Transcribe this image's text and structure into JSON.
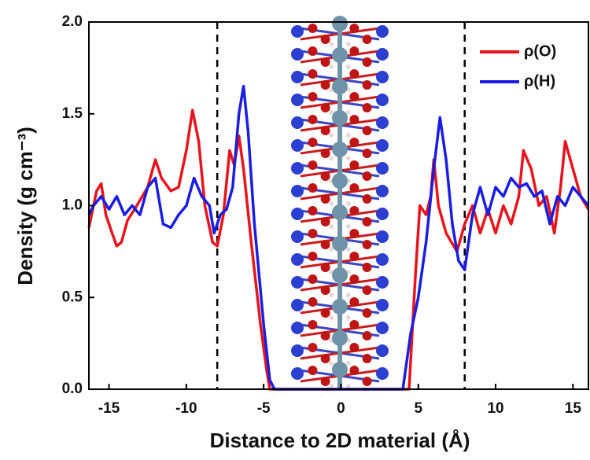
{
  "chart_data": {
    "type": "line",
    "xlabel": "Distance to 2D material (Å)",
    "ylabel": "Density (g cm⁻³)",
    "xlim": [
      -16.3,
      16
    ],
    "ylim": [
      0,
      2
    ],
    "xticks": [
      -15,
      -10,
      -5,
      0,
      5,
      10,
      15
    ],
    "yticks": [
      {
        "value": 0,
        "label": "0.0"
      },
      0.5,
      {
        "value": 1,
        "label": "1.0"
      },
      1.5,
      {
        "value": 2,
        "label": "2.0"
      }
    ],
    "reference_lines": [
      -8,
      8
    ],
    "legend": "top-right",
    "series": [
      {
        "name": "ρ(O)",
        "color": "#e8141b",
        "x": [
          -16.3,
          -15.8,
          -15.5,
          -15.2,
          -14.8,
          -14.5,
          -14.2,
          -13.8,
          -13.2,
          -12.5,
          -12.0,
          -11.6,
          -11.0,
          -10.5,
          -10.0,
          -9.6,
          -9.2,
          -8.8,
          -8.3,
          -8.0,
          -7.6,
          -7.2,
          -6.9,
          -6.6,
          -6.3,
          -5.8,
          -5.2,
          -4.8,
          -4.6,
          -4.0,
          0,
          4.4,
          4.8,
          5.1,
          5.5,
          5.8,
          6.0,
          6.3,
          6.8,
          7.5,
          8.0,
          8.5,
          9.0,
          9.5,
          10.0,
          10.5,
          11.0,
          11.5,
          11.8,
          12.3,
          12.8,
          13.3,
          13.8,
          14.2,
          14.5,
          15.0,
          15.5,
          16.0
        ],
        "values": [
          0.88,
          1.08,
          1.12,
          0.95,
          0.85,
          0.78,
          0.8,
          0.92,
          1.0,
          1.1,
          1.25,
          1.15,
          1.08,
          1.1,
          1.3,
          1.52,
          1.35,
          1.0,
          0.8,
          0.78,
          0.95,
          1.3,
          1.22,
          1.38,
          1.2,
          0.8,
          0.35,
          0.1,
          0,
          0,
          0,
          0,
          0.6,
          1.0,
          0.95,
          1.05,
          1.25,
          1.0,
          0.85,
          0.75,
          0.9,
          1.0,
          0.85,
          0.98,
          0.85,
          1.0,
          0.9,
          1.05,
          1.3,
          1.2,
          1.0,
          1.05,
          0.85,
          1.1,
          1.35,
          1.2,
          1.05,
          0.98
        ]
      },
      {
        "name": "ρ(H)",
        "color": "#1a1ee0",
        "x": [
          -16.3,
          -16.0,
          -15.5,
          -15.0,
          -14.5,
          -14.0,
          -13.5,
          -13.0,
          -12.5,
          -12.0,
          -11.5,
          -11.0,
          -10.5,
          -10.0,
          -9.5,
          -9.0,
          -8.5,
          -8.2,
          -7.8,
          -7.4,
          -7.0,
          -6.6,
          -6.3,
          -6.0,
          -5.6,
          -5.0,
          -4.6,
          -4.3,
          4.0,
          4.5,
          5.0,
          5.5,
          6.0,
          6.4,
          6.8,
          7.2,
          7.6,
          8.0,
          8.5,
          9.0,
          9.5,
          10.0,
          10.5,
          11.0,
          11.5,
          12.0,
          12.5,
          13.0,
          13.5,
          14.0,
          14.5,
          15.0,
          15.5,
          16.0
        ],
        "values": [
          0.95,
          1.0,
          1.05,
          0.98,
          1.05,
          0.95,
          1.0,
          0.95,
          1.1,
          1.15,
          0.9,
          0.88,
          0.95,
          1.0,
          1.15,
          1.05,
          1.0,
          0.85,
          0.95,
          0.98,
          1.1,
          1.5,
          1.65,
          1.4,
          0.9,
          0.35,
          0.05,
          0,
          0,
          0.3,
          0.5,
          0.8,
          1.2,
          1.48,
          1.25,
          0.9,
          0.7,
          0.65,
          0.95,
          1.1,
          0.95,
          1.1,
          1.05,
          1.15,
          1.1,
          1.12,
          1.05,
          1.08,
          0.9,
          1.05,
          1.0,
          1.1,
          1.05,
          1.0
        ]
      }
    ]
  }
}
